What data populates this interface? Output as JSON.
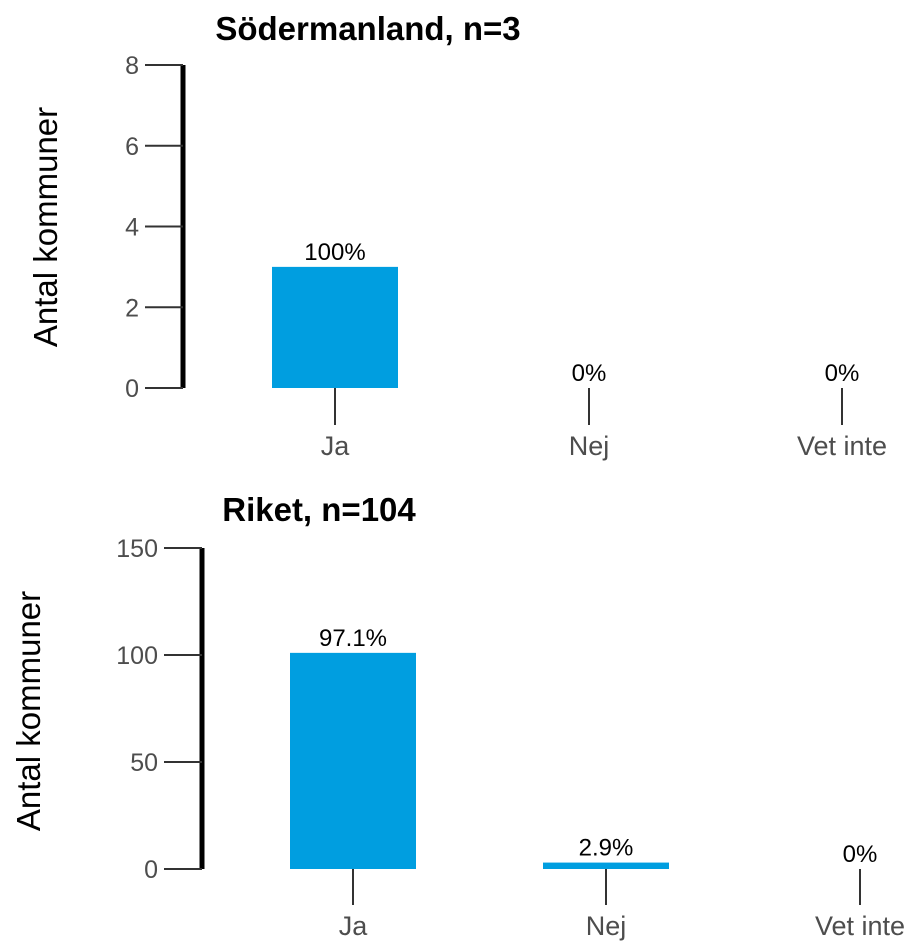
{
  "chart_data": [
    {
      "type": "bar",
      "title": "Södermanland, n=3",
      "xlabel": "",
      "ylabel": "Antal kommuner",
      "ylim": [
        0,
        8
      ],
      "yticks": [
        "0",
        "2",
        "4",
        "6",
        "8"
      ],
      "categories": [
        "Ja",
        "Nej",
        "Vet inte"
      ],
      "values": [
        3,
        0,
        0
      ],
      "data_labels": [
        "100%",
        "0%",
        "0%"
      ],
      "grid": false,
      "bar_color": "#009ee0"
    },
    {
      "type": "bar",
      "title": "Riket, n=104",
      "xlabel": "",
      "ylabel": "Antal kommuner",
      "ylim": [
        0,
        150
      ],
      "yticks": [
        "0",
        "50",
        "100",
        "150"
      ],
      "categories": [
        "Ja",
        "Nej",
        "Vet inte"
      ],
      "values": [
        101,
        3,
        0
      ],
      "data_labels": [
        "97.1%",
        "2.9%",
        "0%"
      ],
      "grid": false,
      "bar_color": "#009ee0"
    }
  ]
}
